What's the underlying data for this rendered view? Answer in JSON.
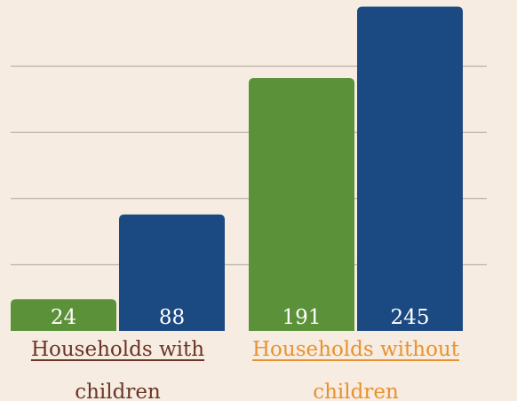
{
  "chart_data": {
    "type": "bar",
    "categories": [
      "Households with children",
      "Households without children"
    ],
    "category_colors": [
      "#6b3527",
      "#e8922e"
    ],
    "series": [
      {
        "color": "#5b9139",
        "values": [
          24,
          191
        ]
      },
      {
        "color": "#1b4a82",
        "values": [
          88,
          245
        ]
      }
    ],
    "ylim": [
      0,
      250
    ],
    "yticks": [
      50,
      100,
      150,
      200
    ],
    "grid": true
  }
}
